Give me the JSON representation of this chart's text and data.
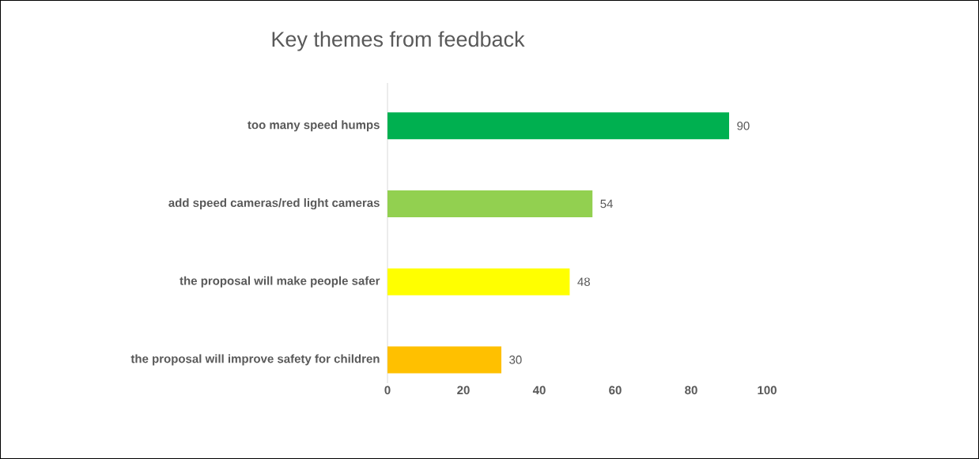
{
  "chart_data": {
    "type": "bar",
    "orientation": "horizontal",
    "title": "Key themes from feedback",
    "categories": [
      "too many speed humps",
      "add speed cameras/red light cameras",
      "the proposal will make people safer",
      "the proposal will improve safety for children"
    ],
    "values": [
      90,
      54,
      48,
      30
    ],
    "colors": [
      "#00b050",
      "#92d050",
      "#ffff00",
      "#ffc000"
    ],
    "xlim": [
      0,
      100
    ],
    "xticks": [
      0,
      20,
      40,
      60,
      80,
      100
    ],
    "data_labels": true,
    "grid": false
  }
}
